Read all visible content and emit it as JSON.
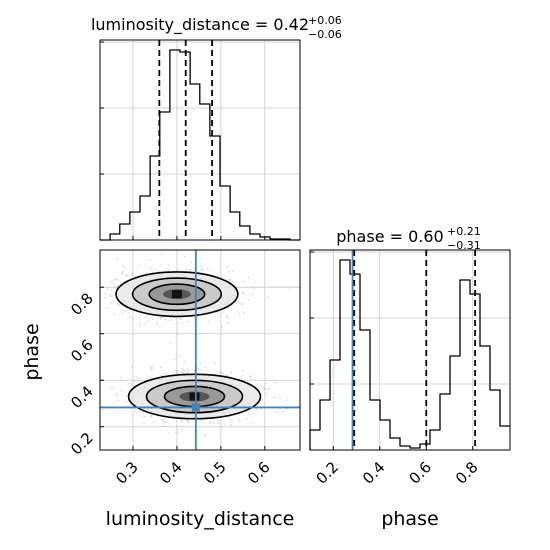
{
  "chart_data": [
    {
      "type": "histogram",
      "panel": "marginal-luminosity-distance",
      "title": {
        "prefix": "luminosity_distance = 0.42",
        "sup": "+0.06",
        "sub": "−0.06"
      },
      "xlim": [
        0.225,
        0.68
      ],
      "ylim": [
        0,
        1.0
      ],
      "bin_edges": [
        0.225,
        0.248,
        0.27,
        0.293,
        0.316,
        0.339,
        0.361,
        0.384,
        0.407,
        0.43,
        0.452,
        0.475,
        0.498,
        0.521,
        0.543,
        0.566,
        0.589,
        0.612,
        0.634,
        0.657,
        0.68
      ],
      "values": [
        0.0,
        0.03,
        0.08,
        0.14,
        0.22,
        0.42,
        0.64,
        0.95,
        0.94,
        0.78,
        0.68,
        0.52,
        0.27,
        0.14,
        0.07,
        0.03,
        0.015,
        0.005,
        0.005,
        0.0
      ],
      "quantile_lines": [
        0.36,
        0.42,
        0.48
      ],
      "grid": true
    },
    {
      "type": "histogram",
      "panel": "marginal-phase",
      "title": {
        "prefix": "phase = 0.60",
        "sup": "+0.21",
        "sub": "−0.31"
      },
      "xlim": [
        0.1,
        0.96
      ],
      "ylim": [
        0,
        1.0
      ],
      "x_ticks": [
        "0.2",
        "0.4",
        "0.6",
        "0.8"
      ],
      "xlabel": "phase",
      "bin_edges": [
        0.1,
        0.143,
        0.186,
        0.229,
        0.272,
        0.315,
        0.358,
        0.401,
        0.444,
        0.487,
        0.53,
        0.573,
        0.616,
        0.659,
        0.702,
        0.745,
        0.788,
        0.831,
        0.874,
        0.917,
        0.96
      ],
      "values": [
        0.1,
        0.25,
        0.45,
        0.95,
        0.88,
        0.6,
        0.25,
        0.15,
        0.06,
        0.02,
        0.01,
        0.03,
        0.1,
        0.28,
        0.47,
        0.85,
        0.78,
        0.52,
        0.3,
        0.12
      ],
      "quantile_lines": [
        0.29,
        0.6,
        0.81
      ],
      "truth": 0.283,
      "grid": true
    },
    {
      "type": "contour-2d",
      "panel": "luminosity-distance-vs-phase",
      "xlim": [
        0.225,
        0.68
      ],
      "ylim": [
        0.1,
        0.96
      ],
      "x_ticks": [
        "0.3",
        "0.4",
        "0.5",
        "0.6"
      ],
      "y_ticks": [
        "0.2",
        "0.4",
        "0.6",
        "0.8"
      ],
      "xlabel": "luminosity_distance",
      "ylabel": "phase",
      "modes": [
        {
          "x": 0.4,
          "y": 0.77,
          "sx": 0.06,
          "sy": 0.07
        },
        {
          "x": 0.44,
          "y": 0.33,
          "sx": 0.065,
          "sy": 0.07
        }
      ],
      "truth": {
        "x": 0.443,
        "y": 0.283
      },
      "grid": true
    }
  ],
  "colors": {
    "line": "#000000",
    "truth": "#4682b4",
    "grid": "#c8c8c8",
    "scatter": "#9a9a9a"
  }
}
